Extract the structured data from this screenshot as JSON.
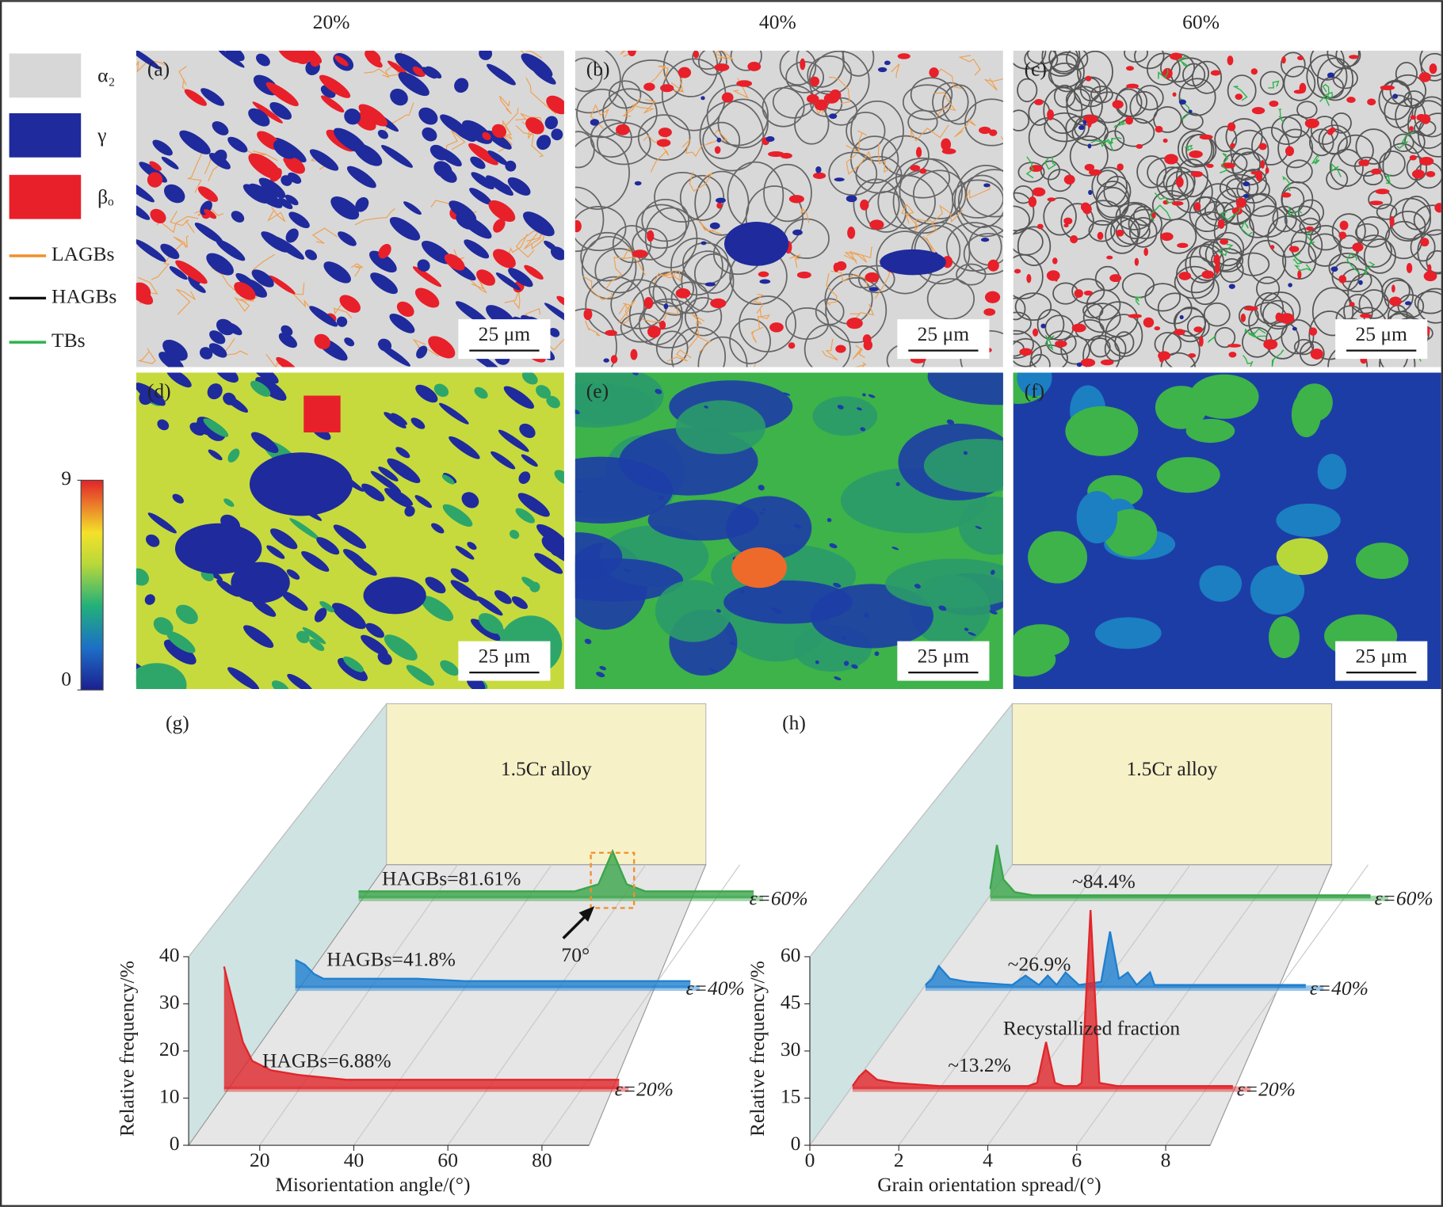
{
  "columns": [
    "20%",
    "40%",
    "60%"
  ],
  "legend": {
    "phases": [
      "α₂",
      "γ",
      "βₒ"
    ],
    "boundaries": [
      "LAGBs",
      "HAGBs",
      "TBs"
    ]
  },
  "panels": [
    "(a)",
    "(b)",
    "(c)",
    "(d)",
    "(e)",
    "(f)"
  ],
  "scale_bar": "25 μm",
  "colorbar_ticks": [
    0,
    9
  ],
  "chart_data": [
    {
      "type": "waterfall",
      "panel": "(g)",
      "inset": "1.5Cr alloy",
      "xlabel": "Misorientation angle/(°)",
      "ylabel": "Relative frequency/%",
      "xlim": [
        0,
        90
      ],
      "xticks": [
        20,
        40,
        60,
        80
      ],
      "ylim": [
        0,
        40
      ],
      "yticks": [
        0,
        10,
        20,
        30,
        40
      ],
      "x": [
        4,
        6,
        8,
        10,
        14,
        20,
        30,
        40,
        50,
        55,
        58,
        61,
        65,
        75,
        88
      ],
      "series": [
        {
          "name": "ε=20%",
          "color": "#e0262b",
          "values": [
            26,
            18,
            10,
            6,
            4,
            3,
            2,
            2,
            2,
            2,
            2,
            2,
            2,
            2,
            2
          ]
        },
        {
          "name": "ε=40%",
          "color": "#1f7fd0",
          "values": [
            6,
            5,
            3,
            2,
            2,
            2,
            2,
            1.5,
            1.5,
            1.5,
            1.5,
            1.5,
            1.5,
            1.5,
            1.5
          ]
        },
        {
          "name": "ε=60%",
          "color": "#3aa54a",
          "values": [
            1.5,
            1.5,
            1.5,
            1.5,
            1.5,
            1.5,
            1.5,
            1.5,
            1.5,
            3,
            10,
            3,
            1.5,
            1.5,
            1.5
          ]
        }
      ],
      "annotations": [
        "HAGBs=6.88%",
        "HAGBs=41.8%",
        "HAGBs=81.61%",
        "70°"
      ]
    },
    {
      "type": "waterfall",
      "panel": "(h)",
      "inset": "1.5Cr alloy",
      "xlabel": "Grain orientation spread/(°)",
      "ylabel": "Relative frequency/%",
      "xlim": [
        0,
        9
      ],
      "xticks": [
        0,
        2,
        4,
        6,
        8
      ],
      "ylim": [
        0,
        60
      ],
      "yticks": [
        0,
        15,
        30,
        45,
        60
      ],
      "x": [
        0.05,
        0.2,
        0.35,
        0.6,
        1.0,
        2.0,
        2.3,
        2.6,
        2.8,
        3.0,
        3.2,
        3.5,
        4.0,
        4.2,
        4.4,
        4.6,
        4.8,
        5.1,
        5.2,
        5.4,
        5.6,
        6.0,
        8.6
      ],
      "series": [
        {
          "name": "ε=20%",
          "color": "#e0262b",
          "values": [
            1,
            4,
            6,
            3,
            2,
            1,
            1,
            1,
            1,
            1,
            1,
            1,
            1,
            2,
            15,
            2,
            1,
            1,
            2,
            57,
            2,
            1,
            1
          ]
        },
        {
          "name": "ε=40%",
          "color": "#1f7fd0",
          "values": [
            1,
            3,
            7,
            3,
            2,
            1,
            4,
            1,
            4,
            1,
            5,
            1,
            2,
            18,
            3,
            5,
            1,
            5,
            1,
            1,
            1,
            1,
            1
          ]
        },
        {
          "name": "ε=60%",
          "color": "#3aa54a",
          "values": [
            3,
            17,
            6,
            2,
            1,
            1,
            1,
            1,
            1,
            1,
            1,
            1,
            1,
            1,
            1,
            1,
            1,
            1,
            1,
            1,
            1,
            1,
            1
          ]
        }
      ],
      "annotations": [
        "~13.2%",
        "~26.9%",
        "~84.4%",
        "Recystallized fraction"
      ]
    }
  ]
}
